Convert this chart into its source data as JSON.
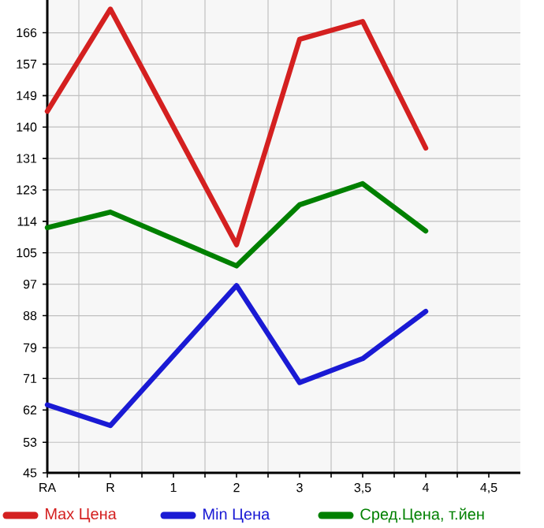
{
  "chart_data": {
    "type": "line",
    "categories": [
      "RA",
      "R",
      "1",
      "2",
      "3",
      "3,5",
      "4",
      "4,5"
    ],
    "series": [
      {
        "name": "Max Цена",
        "color": "#d42020",
        "values": [
          144.4,
          172.5,
          null,
          107.7,
          164.2,
          169.1,
          134.3,
          null
        ]
      },
      {
        "name": "Min Цена",
        "color": "#1a1ad4",
        "values": [
          63.7,
          58,
          null,
          96.5,
          69.8,
          76.4,
          89.4,
          null
        ]
      },
      {
        "name": "Сред.Цена, т.йен",
        "color": "#008000",
        "values": [
          112.4,
          116.7,
          null,
          101.9,
          118.7,
          124.5,
          111.5,
          null
        ]
      }
    ],
    "ylim": [
      45,
      175
    ],
    "yticks": [
      45,
      {
        "value": 53.4,
        "label": "53"
      },
      {
        "value": 62.29,
        "label": "62"
      },
      {
        "value": 70.93,
        "label": "71"
      },
      {
        "value": 79.4,
        "label": "79"
      },
      {
        "value": 88.21,
        "label": "88"
      },
      {
        "value": 96.86,
        "label": "97"
      },
      {
        "value": 105.5,
        "label": "105"
      },
      {
        "value": 114.14,
        "label": "114"
      },
      {
        "value": 122.79,
        "label": "123"
      },
      {
        "value": 131.43,
        "label": "131"
      },
      {
        "value": 140.07,
        "label": "140"
      },
      {
        "value": 148.71,
        "label": "149"
      },
      {
        "value": 157.36,
        "label": "157"
      },
      {
        "value": 166,
        "label": "166"
      }
    ],
    "grid": true,
    "legend": "bottom",
    "marker": "none",
    "line_style": "solid"
  }
}
